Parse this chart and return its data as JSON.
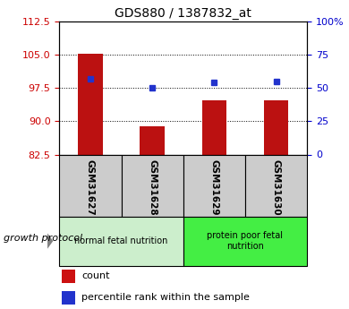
{
  "title": "GDS880 / 1387832_at",
  "samples": [
    "GSM31627",
    "GSM31628",
    "GSM31629",
    "GSM31630"
  ],
  "bar_values": [
    105.3,
    88.8,
    94.8,
    94.7
  ],
  "percentile_values": [
    57,
    50,
    54,
    55
  ],
  "ylim_left": [
    82.5,
    112.5
  ],
  "yticks_left": [
    82.5,
    90,
    97.5,
    105,
    112.5
  ],
  "ylim_right": [
    0,
    100
  ],
  "yticks_right": [
    0,
    25,
    50,
    75,
    100
  ],
  "ytick_labels_right": [
    "0",
    "25",
    "50",
    "75",
    "100%"
  ],
  "bar_color": "#bb1111",
  "dot_color": "#2233cc",
  "bar_bottom": 82.5,
  "groups": [
    {
      "label": "normal fetal nutrition",
      "indices": [
        0,
        1
      ],
      "color": "#cceecc"
    },
    {
      "label": "protein poor fetal\nnutrition",
      "indices": [
        2,
        3
      ],
      "color": "#44ee44"
    }
  ],
  "growth_protocol_label": "growth protocol",
  "legend_items": [
    {
      "color": "#cc1111",
      "label": "count"
    },
    {
      "color": "#2233cc",
      "label": "percentile rank within the sample"
    }
  ],
  "left_tick_color": "#cc0000",
  "right_tick_color": "#0000cc",
  "bg_plot": "#ffffff",
  "bg_sample_labels": "#cccccc",
  "fig_bg": "#ffffff"
}
